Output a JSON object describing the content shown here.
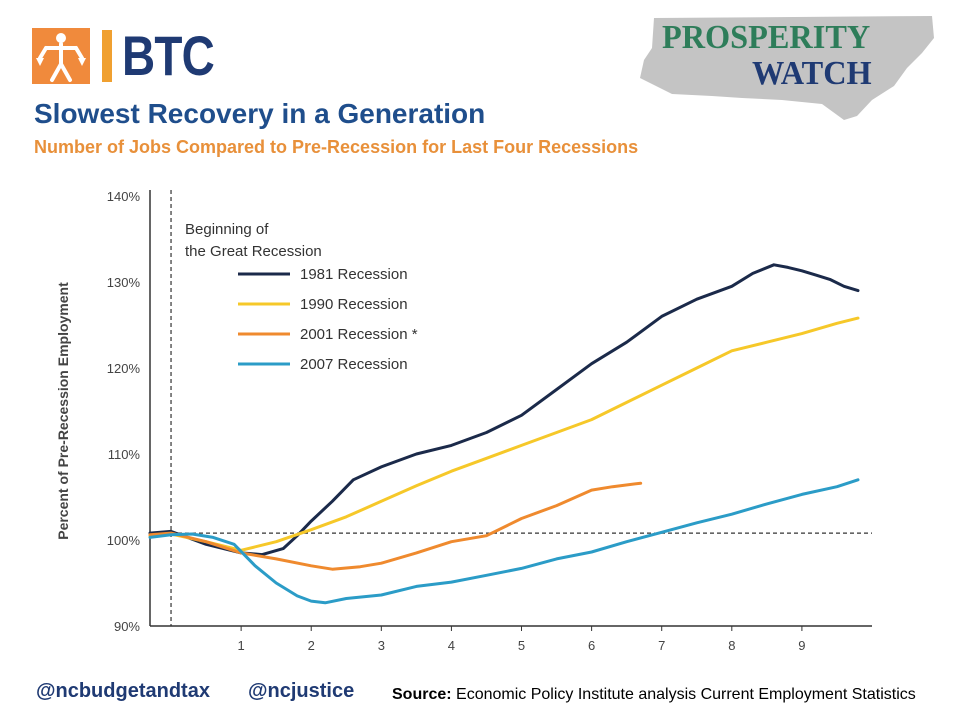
{
  "brand": {
    "btc_text": "BTC",
    "prosperity_line1": "PROSPERITY",
    "prosperity_line2": "WATCH",
    "colors": {
      "orange": "#f08a3c",
      "navy": "#1f3a73",
      "green": "#2e7d5a",
      "gray": "#a0a0a0"
    }
  },
  "header": {
    "title": "Slowest Recovery in a Generation",
    "subtitle": "Number of Jobs Compared to Pre-Recession for Last Four Recessions"
  },
  "footer": {
    "handle_1": "@ncbudgetandtax",
    "handle_2": "@ncjustice",
    "source_label": "Source:",
    "source_text": " Economic Policy Institute  analysis Current Employment Statistics"
  },
  "chart_data": {
    "type": "line",
    "title": "",
    "xlabel": "",
    "ylabel": "Percent of Pre-Recession Employment",
    "xlim": [
      -0.3,
      10
    ],
    "ylim": [
      90,
      140
    ],
    "xticks": [
      1,
      2,
      3,
      4,
      5,
      6,
      7,
      8,
      9
    ],
    "yticks": [
      90,
      100,
      110,
      120,
      130,
      140
    ],
    "ytick_labels": [
      "90%",
      "100%",
      "110%",
      "120%",
      "130%",
      "140%"
    ],
    "reference_line_y": 100.8,
    "annotation": [
      "Beginning of",
      "the Great Recession"
    ],
    "legend_position": "top-left",
    "series": [
      {
        "name": "1981 Recession",
        "color": "#1b2a4a",
        "x": [
          -0.3,
          0,
          0.5,
          1,
          1.3,
          1.6,
          1.8,
          2,
          2.3,
          2.6,
          3,
          3.5,
          4,
          4.5,
          5,
          5.5,
          6,
          6.5,
          7,
          7.5,
          8,
          8.3,
          8.6,
          8.8,
          9,
          9.2,
          9.4,
          9.6,
          9.8
        ],
        "y": [
          100.8,
          101,
          99.5,
          98.5,
          98.3,
          99,
          100.5,
          102.2,
          104.5,
          107,
          108.5,
          110,
          111,
          112.5,
          114.5,
          117.5,
          120.5,
          123,
          126,
          128,
          129.5,
          131,
          132,
          131.7,
          131.3,
          130.8,
          130.3,
          129.5,
          129
        ]
      },
      {
        "name": "1990 Recession",
        "color": "#f6c829",
        "x": [
          -0.3,
          0,
          0.5,
          1,
          1.5,
          2,
          2.5,
          3,
          3.5,
          4,
          4.5,
          5,
          5.5,
          6,
          6.5,
          7,
          7.5,
          8,
          8.5,
          9,
          9.5,
          9.8
        ],
        "y": [
          100.5,
          100.7,
          99.8,
          98.8,
          99.8,
          101.2,
          102.7,
          104.5,
          106.3,
          108,
          109.5,
          111,
          112.5,
          114,
          116,
          118,
          120,
          122,
          123,
          124,
          125.2,
          125.8
        ]
      },
      {
        "name": "2001 Recession *",
        "color": "#ef8a2e",
        "x": [
          -0.3,
          0,
          0.5,
          1,
          1.5,
          2,
          2.3,
          2.7,
          3,
          3.5,
          4,
          4.5,
          5,
          5.5,
          6,
          6.3,
          6.7
        ],
        "y": [
          100.6,
          100.8,
          99.8,
          98.5,
          97.8,
          97.0,
          96.6,
          96.9,
          97.3,
          98.5,
          99.8,
          100.5,
          102.5,
          104,
          105.8,
          106.2,
          106.6
        ]
      },
      {
        "name": "2007 Recession",
        "color": "#2b9cc7",
        "x": [
          -0.3,
          0,
          0.3,
          0.6,
          0.9,
          1.2,
          1.5,
          1.8,
          2,
          2.2,
          2.5,
          3,
          3.5,
          4,
          4.5,
          5,
          5.5,
          6,
          6.5,
          7,
          7.5,
          8,
          8.5,
          9,
          9.5,
          9.8
        ],
        "y": [
          100.3,
          100.6,
          100.7,
          100.3,
          99.5,
          97,
          95,
          93.5,
          92.9,
          92.7,
          93.2,
          93.6,
          94.6,
          95.1,
          95.9,
          96.7,
          97.8,
          98.6,
          99.8,
          100.9,
          102,
          103,
          104.2,
          105.3,
          106.2,
          107
        ]
      }
    ]
  }
}
